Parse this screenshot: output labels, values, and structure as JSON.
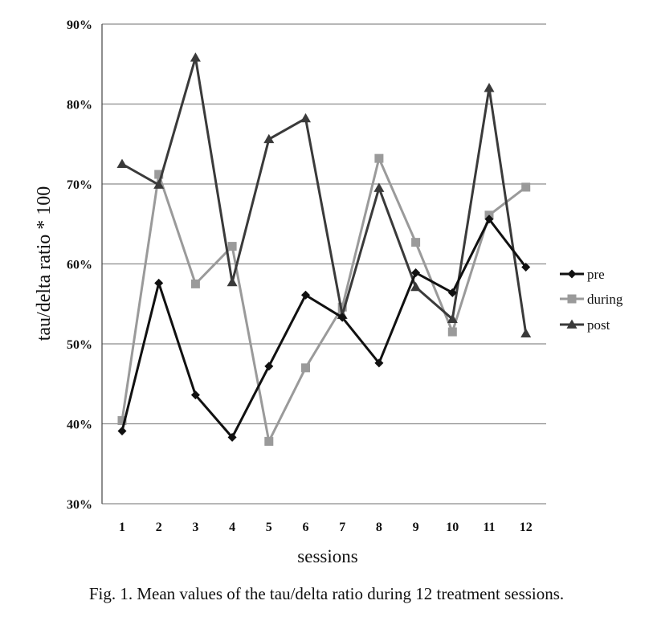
{
  "chart_data": {
    "type": "line",
    "title": "",
    "xlabel": "sessions",
    "ylabel": "tau/delta ratio * 100",
    "categories": [
      "1",
      "2",
      "3",
      "4",
      "5",
      "6",
      "7",
      "8",
      "9",
      "10",
      "11",
      "12"
    ],
    "ylim": [
      30,
      90
    ],
    "yticks": [
      30,
      40,
      50,
      60,
      70,
      80,
      90
    ],
    "ytick_labels": [
      "30%",
      "40%",
      "50%",
      "60%",
      "70%",
      "80%",
      "90%"
    ],
    "grid": true,
    "legend_position": "right",
    "series": [
      {
        "name": "pre",
        "color": "#111111",
        "marker": "diamond",
        "values": [
          39.1,
          57.6,
          43.6,
          38.3,
          47.2,
          56.1,
          53.3,
          47.6,
          58.9,
          56.4,
          65.6,
          59.6
        ]
      },
      {
        "name": "during",
        "color": "#9a9a9a",
        "marker": "square",
        "values": [
          40.4,
          71.2,
          57.5,
          62.2,
          37.8,
          47.0,
          54.6,
          73.2,
          62.7,
          51.5,
          66.1,
          69.6
        ]
      },
      {
        "name": "post",
        "color": "#3a3a3a",
        "marker": "triangle",
        "values": [
          72.5,
          69.9,
          85.8,
          57.7,
          75.6,
          78.2,
          53.6,
          69.5,
          57.1,
          53.1,
          82.0,
          51.3
        ]
      }
    ]
  },
  "caption": "Fig. 1.  Mean values of the tau/delta ratio during 12 treatment sessions."
}
